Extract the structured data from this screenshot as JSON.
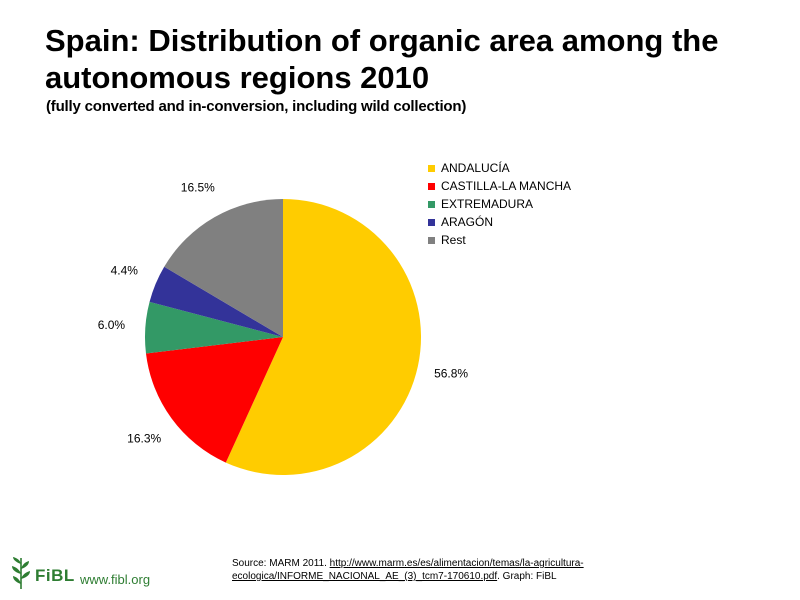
{
  "header": {
    "title": "Spain: Distribution of organic area among the autonomous regions 2010",
    "subtitle": "(fully converted and in-conversion, including wild collection)"
  },
  "chart_data": {
    "type": "pie",
    "title": "",
    "start_angle_deg": 0,
    "direction": "clockwise",
    "slices": [
      {
        "label": "ANDALUCÍA",
        "value": 56.8,
        "display": "56.8%",
        "color": "#FFCC00"
      },
      {
        "label": "CASTILLA-LA MANCHA",
        "value": 16.3,
        "display": "16.3%",
        "color": "#FF0000"
      },
      {
        "label": "EXTREMADURA",
        "value": 6.0,
        "display": "6.0%",
        "color": "#339966"
      },
      {
        "label": "ARAGÓN",
        "value": 4.4,
        "display": "4.4%",
        "color": "#333399"
      },
      {
        "label": "Rest",
        "value": 16.5,
        "display": "16.5%",
        "color": "#808080"
      }
    ],
    "legend_position": "right",
    "legend": [
      {
        "label": "ANDALUCÍA",
        "color": "#FFCC00"
      },
      {
        "label": "CASTILLA-LA MANCHA",
        "color": "#FF0000"
      },
      {
        "label": "EXTREMADURA",
        "color": "#339966"
      },
      {
        "label": "ARAGÓN",
        "color": "#333399"
      },
      {
        "label": "Rest",
        "color": "#808080"
      }
    ]
  },
  "footer": {
    "source_prefix": "Source:  MARM 2011. ",
    "source_link": "http://www.marm.es/es/alimentacion/temas/la-agricultura-ecologica/INFORME_NACIONAL_AE_(3)_tcm7-170610.pdf",
    "source_suffix": ".  Graph:  FiBL",
    "logo_text": "FiBL",
    "website": "www.fibl.org",
    "brand_color": "#2E7D32"
  }
}
